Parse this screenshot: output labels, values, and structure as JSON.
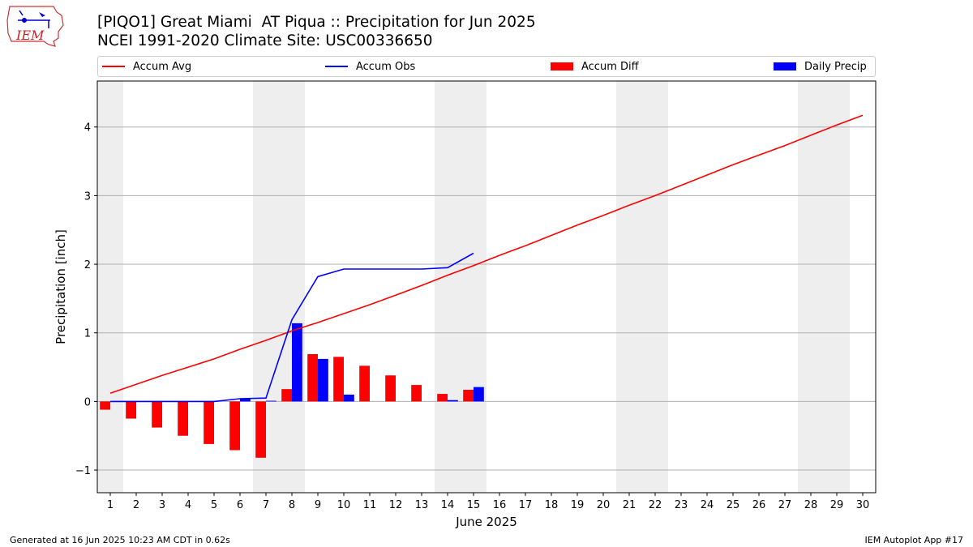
{
  "header": {
    "title_line1": "[PIQO1] Great Miami  AT Piqua :: Precipitation for Jun 2025",
    "title_line2": "NCEI 1991-2020 Climate Site: USC00336650",
    "logo_text": "IEM"
  },
  "legend": {
    "items": [
      {
        "label": "Accum Avg",
        "kind": "line",
        "color": "#ff0000"
      },
      {
        "label": "Accum Obs",
        "kind": "line",
        "color": "#0000ff"
      },
      {
        "label": "Accum Diff",
        "kind": "patch",
        "color": "#ff0000"
      },
      {
        "label": "Daily Precip",
        "kind": "patch",
        "color": "#0000ff"
      }
    ],
    "placement": "top, above plot"
  },
  "chart_data": {
    "type": "bar",
    "xlabel": "June 2025",
    "ylabel": "Precipitation [inch]",
    "ylim": [
      -1.33,
      4.67
    ],
    "xlim": [
      0.5,
      30.5
    ],
    "grid": "horizontal",
    "x_ticks": [
      1,
      2,
      3,
      4,
      5,
      6,
      7,
      8,
      9,
      10,
      11,
      12,
      13,
      14,
      15,
      16,
      17,
      18,
      19,
      20,
      21,
      22,
      23,
      24,
      25,
      26,
      27,
      28,
      29,
      30
    ],
    "y_ticks": [
      -1,
      0,
      1,
      2,
      3,
      4
    ],
    "y_tick_labels": [
      "−1",
      "0",
      "1",
      "2",
      "3",
      "4"
    ],
    "weekend_bands": [
      [
        0.5,
        1.5
      ],
      [
        6.5,
        8.5
      ],
      [
        13.5,
        15.5
      ],
      [
        20.5,
        22.5
      ],
      [
        27.5,
        29.5
      ]
    ],
    "band_color": "#eeeeee",
    "series": [
      {
        "name": "Accum Avg",
        "kind": "line",
        "color": "#ff0000",
        "x": [
          1,
          2,
          3,
          4,
          5,
          6,
          7,
          8,
          9,
          10,
          11,
          12,
          13,
          14,
          15,
          16,
          17,
          18,
          19,
          20,
          21,
          22,
          23,
          24,
          25,
          26,
          27,
          28,
          29,
          30
        ],
        "values": [
          0.12,
          0.25,
          0.38,
          0.5,
          0.62,
          0.76,
          0.89,
          1.03,
          1.15,
          1.28,
          1.41,
          1.55,
          1.69,
          1.84,
          1.98,
          2.13,
          2.27,
          2.42,
          2.57,
          2.71,
          2.86,
          3.0,
          3.15,
          3.3,
          3.45,
          3.59,
          3.73,
          3.88,
          4.03,
          4.17
        ]
      },
      {
        "name": "Accum Obs",
        "kind": "line",
        "color": "#0000ff",
        "x": [
          1,
          2,
          3,
          4,
          5,
          6,
          7,
          8,
          9,
          10,
          11,
          12,
          13,
          14,
          15
        ],
        "values": [
          0.0,
          0.0,
          0.0,
          0.0,
          0.0,
          0.04,
          0.05,
          1.19,
          1.82,
          1.93,
          1.93,
          1.93,
          1.93,
          1.95,
          2.16
        ]
      },
      {
        "name": "Accum Diff",
        "kind": "bar",
        "color": "#ff0000",
        "x": [
          1,
          2,
          3,
          4,
          5,
          6,
          7,
          8,
          9,
          10,
          11,
          12,
          13,
          14,
          15
        ],
        "values": [
          -0.12,
          -0.25,
          -0.38,
          -0.5,
          -0.62,
          -0.71,
          -0.82,
          0.18,
          0.69,
          0.65,
          0.52,
          0.38,
          0.24,
          0.11,
          0.17
        ]
      },
      {
        "name": "Daily Precip",
        "kind": "bar",
        "color": "#0000ff",
        "x": [
          1,
          2,
          3,
          4,
          5,
          6,
          7,
          8,
          9,
          10,
          11,
          12,
          13,
          14,
          15
        ],
        "values": [
          0,
          0,
          0,
          0,
          0,
          0.04,
          0.01,
          1.14,
          0.62,
          0.1,
          0,
          0,
          0,
          0.02,
          0.21
        ]
      }
    ]
  },
  "footer": {
    "generated": "Generated at 16 Jun 2025 10:23 AM CDT in 0.62s",
    "app": "IEM Autoplot App #17"
  }
}
